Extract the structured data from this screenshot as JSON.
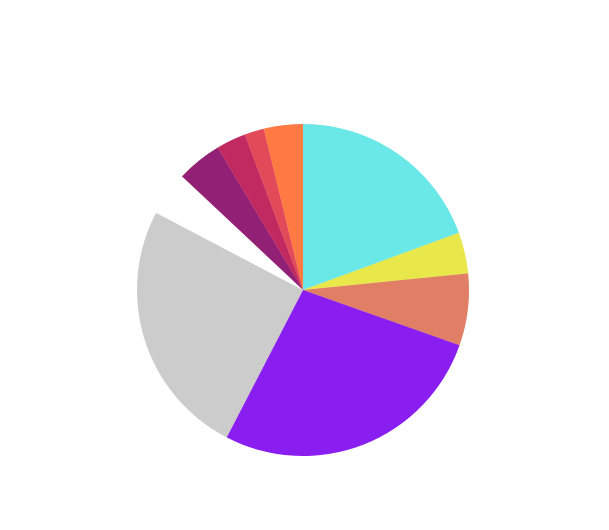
{
  "chart_data": {
    "type": "pie",
    "categories": [
      null,
      null,
      null,
      null,
      null,
      null,
      null,
      null,
      null,
      null
    ],
    "values": [
      19.4,
      4.0,
      7.0,
      27.2,
      25.1,
      4.3,
      4.4,
      2.9,
      1.9,
      3.8
    ],
    "colors": [
      "#6ae8e8",
      "#e8e84a",
      "#e07f66",
      "#8a1ef0",
      "#cccccc",
      "#ffffff",
      "#922075",
      "#c02a60",
      "#e24a5a",
      "#fd7a42"
    ]
  }
}
